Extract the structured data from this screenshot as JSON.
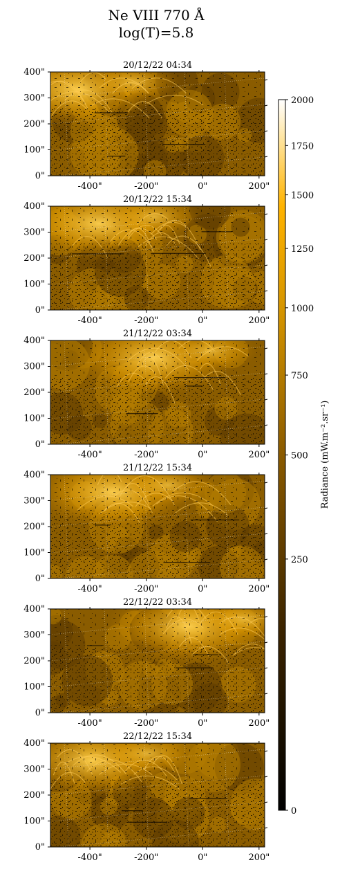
{
  "figure": {
    "title_line1": "Ne VIII 770 Å",
    "title_line2": "log(T)=5.8"
  },
  "panels": [
    {
      "date": "20/12/22 04:34"
    },
    {
      "date": "20/12/22 15:34"
    },
    {
      "date": "21/12/22 03:34"
    },
    {
      "date": "21/12/22 15:34"
    },
    {
      "date": "22/12/22 03:34"
    },
    {
      "date": "22/12/22 15:34"
    }
  ],
  "axes": {
    "x_tick_labels": [
      "-400\"",
      "-200\"",
      "0\"",
      "200\""
    ],
    "x_tick_values": [
      -400,
      -200,
      0,
      200
    ],
    "y_tick_labels": [
      "0\"",
      "100\"",
      "200\"",
      "300\"",
      "400\""
    ],
    "y_tick_values": [
      0,
      100,
      200,
      300,
      400
    ],
    "x_range": [
      -540,
      220
    ],
    "y_range": [
      0,
      400
    ]
  },
  "colorbar": {
    "label": "Radiance (mW.m⁻².sr⁻¹)",
    "tick_labels": [
      "0",
      "250",
      "500",
      "750",
      "1000",
      "1250",
      "1500",
      "1750",
      "2000"
    ],
    "tick_values": [
      0,
      250,
      500,
      750,
      1000,
      1250,
      1500,
      1750,
      2000
    ],
    "scale": "sqrt",
    "colormap": "sdo-aia-171-like",
    "colors": [
      "#000000",
      "#3a2300",
      "#7a4d00",
      "#b87800",
      "#f0a800",
      "#ffd36a",
      "#ffffff"
    ]
  }
}
